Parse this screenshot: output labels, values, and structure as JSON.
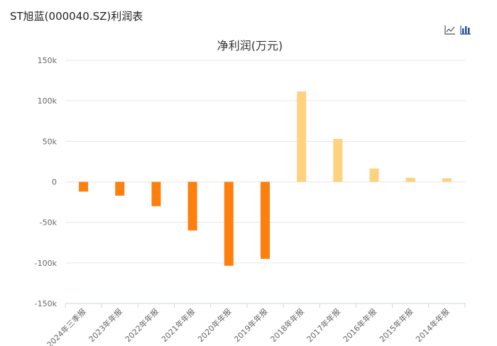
{
  "page": {
    "title": "ST旭蓝(000040.SZ)利润表"
  },
  "toolbar": {
    "icons": [
      "line-chart-icon",
      "bar-chart-icon"
    ]
  },
  "colors": {
    "negative": "#FF7F0E",
    "positive": "#FFD280",
    "grid": "#E6E6E6",
    "axis": "#C9D5E8"
  },
  "chart_data": {
    "type": "bar",
    "title": "净利润(万元)",
    "categories": [
      "2024年三季报",
      "2023年年报",
      "2022年年报",
      "2021年年报",
      "2020年年报",
      "2019年年报",
      "2018年年报",
      "2017年年报",
      "2016年年报",
      "2015年年报",
      "2014年年报"
    ],
    "values": [
      -12000,
      -17000,
      -30000,
      -60000,
      -103500,
      -95000,
      111500,
      53000,
      16500,
      5000,
      4500
    ],
    "ylim": [
      -150000,
      150000
    ],
    "yticks": [
      150000,
      100000,
      50000,
      0,
      -50000,
      -100000,
      -150000
    ],
    "ytick_labels": [
      "150k",
      "100k",
      "50k",
      "0",
      "-50k",
      "-100k",
      "-150k"
    ],
    "grid": true,
    "legend": "none"
  }
}
